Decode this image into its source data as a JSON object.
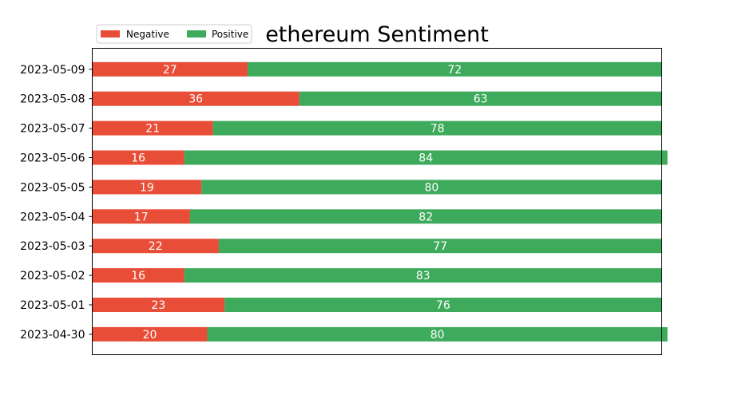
{
  "chart_data": {
    "type": "bar",
    "orientation": "horizontal",
    "stacked": true,
    "title": "ethereum Sentiment",
    "xlabel": "",
    "ylabel": "",
    "xlim": [
      0,
      99
    ],
    "categories": [
      "2023-05-09",
      "2023-05-08",
      "2023-05-07",
      "2023-05-06",
      "2023-05-05",
      "2023-05-04",
      "2023-05-03",
      "2023-05-02",
      "2023-05-01",
      "2023-04-30"
    ],
    "series": [
      {
        "name": "Negative",
        "color": "#e84d37",
        "values": [
          27,
          36,
          21,
          16,
          19,
          17,
          22,
          16,
          23,
          20
        ]
      },
      {
        "name": "Positive",
        "color": "#3eaa5c",
        "values": [
          72,
          63,
          78,
          84,
          80,
          82,
          77,
          83,
          76,
          80
        ]
      }
    ],
    "legend": {
      "placement": "top-left",
      "ncol": 2
    },
    "grid": false
  }
}
